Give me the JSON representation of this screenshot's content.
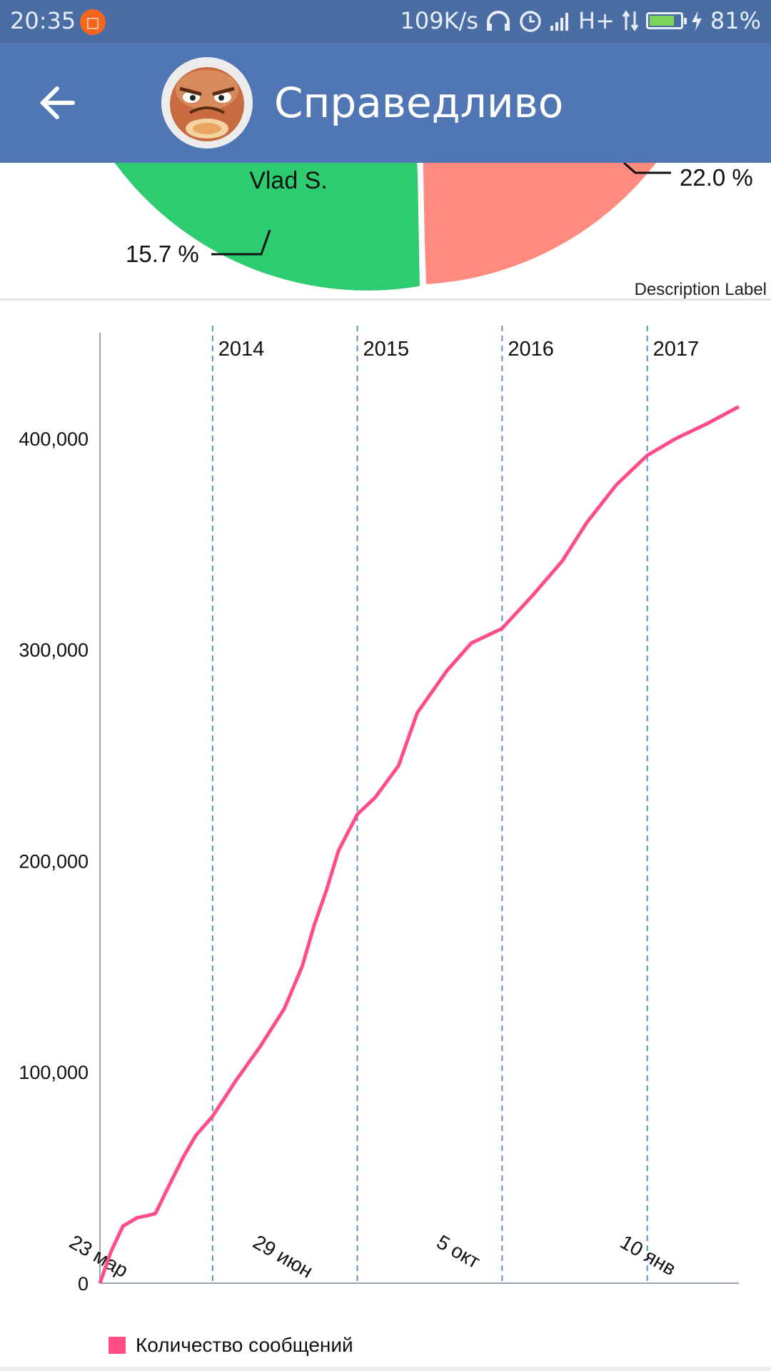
{
  "status_bar": {
    "time": "20:35",
    "network_speed": "109K/s",
    "network_type": "H+",
    "battery_percent": "81%",
    "battery_level": 0.81,
    "icons": [
      "notification-icon",
      "headphones-icon",
      "alarm-icon",
      "signal-icon",
      "data-arrows-icon",
      "battery-icon",
      "charging-icon"
    ]
  },
  "app_bar": {
    "title": "Справедливо",
    "back_icon": "arrow-left-icon",
    "avatar_icon": "grumpy-face-avatar"
  },
  "pie_chart": {
    "type": "pie",
    "slices": [
      {
        "label": "Vlad S.",
        "value_label": "15.7 %",
        "color": "#2ecc71"
      },
      {
        "label": "",
        "value_label": "22.0 %",
        "color": "#ff8a80"
      }
    ],
    "description": "Description Label"
  },
  "chart_data": {
    "type": "line",
    "series": [
      {
        "name": "Количество сообщений",
        "color": "#ff4d85",
        "points": [
          [
            "2013-03-23",
            0
          ],
          [
            "2013-04-20",
            15000
          ],
          [
            "2013-05-20",
            27000
          ],
          [
            "2013-06-25",
            31000
          ],
          [
            "2013-07-20",
            32000
          ],
          [
            "2013-08-10",
            33000
          ],
          [
            "2013-09-10",
            45000
          ],
          [
            "2013-10-20",
            60000
          ],
          [
            "2013-11-20",
            70000
          ],
          [
            "2014-01-01",
            79000
          ],
          [
            "2014-03-01",
            96000
          ],
          [
            "2014-05-01",
            112000
          ],
          [
            "2014-07-01",
            130000
          ],
          [
            "2014-08-15",
            150000
          ],
          [
            "2014-09-15",
            170000
          ],
          [
            "2014-10-15",
            186000
          ],
          [
            "2014-11-15",
            205000
          ],
          [
            "2015-01-01",
            222000
          ],
          [
            "2015-02-15",
            230000
          ],
          [
            "2015-04-15",
            245000
          ],
          [
            "2015-06-01",
            270000
          ],
          [
            "2015-08-15",
            290000
          ],
          [
            "2015-10-15",
            303000
          ],
          [
            "2016-01-01",
            310000
          ],
          [
            "2016-03-15",
            325000
          ],
          [
            "2016-06-01",
            342000
          ],
          [
            "2016-08-01",
            360000
          ],
          [
            "2016-10-15",
            378000
          ],
          [
            "2017-01-01",
            392000
          ],
          [
            "2017-03-15",
            400000
          ],
          [
            "2017-06-01",
            407000
          ],
          [
            "2017-08-20",
            415000
          ]
        ]
      }
    ],
    "x_range": [
      "2013-03-23",
      "2017-08-20"
    ],
    "ylim": [
      0,
      450000
    ],
    "y_ticks": [
      0,
      100000,
      200000,
      300000,
      400000
    ],
    "y_tick_labels": [
      "0",
      "100,000",
      "200,000",
      "300,000",
      "400,000"
    ],
    "year_markers": [
      {
        "date": "2014-01-01",
        "label": "2014"
      },
      {
        "date": "2015-01-01",
        "label": "2015"
      },
      {
        "date": "2016-01-01",
        "label": "2016"
      },
      {
        "date": "2017-01-01",
        "label": "2017"
      }
    ],
    "x_tick_labels": [
      {
        "date": "2013-03-23",
        "label": "23 мар"
      },
      {
        "date": "2014-06-29",
        "label": "29 июн"
      },
      {
        "date": "2015-10-05",
        "label": "5 окт"
      },
      {
        "date": "2017-01-10",
        "label": "10 янв"
      }
    ],
    "legend": {
      "entries": [
        "Количество сообщений"
      ],
      "position": "bottom-left"
    },
    "grid": false
  }
}
